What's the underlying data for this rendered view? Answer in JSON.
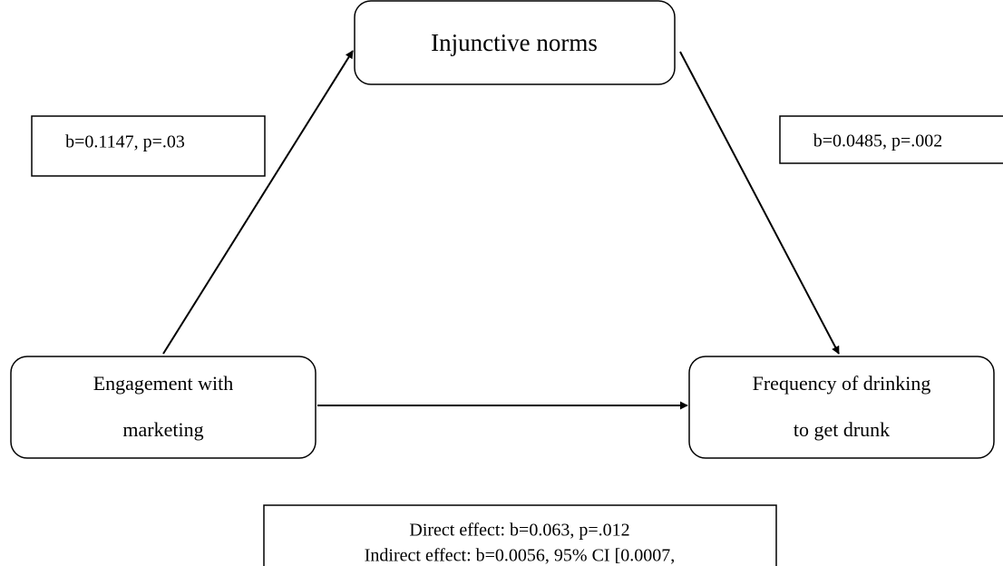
{
  "nodes": [
    {
      "label": [
        "Injunctive norms"
      ]
    },
    {
      "label": [
        "Engagement with",
        "marketing"
      ]
    },
    {
      "label": [
        "Frequency of drinking",
        "to get drunk"
      ]
    }
  ],
  "paths": [
    {
      "label": "b=0.1147, p=.03"
    },
    {
      "label": "b=0.0485, p=.002"
    }
  ],
  "effects": [
    "Direct effect: b=0.063, p=.012",
    "Indirect effect: b=0.0056, 95% CI [0.0007,"
  ]
}
